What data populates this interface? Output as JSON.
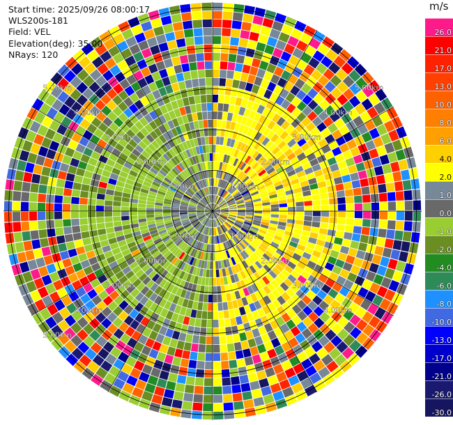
{
  "info": {
    "start_time": "Start time: 2025/09/26 08:00:17",
    "site": "WLS200s-181",
    "field": "Field: VEL",
    "elevation": "Elevation(deg): 35.00",
    "nrays": "NRays: 120"
  },
  "ring_labels": [
    "1.00km",
    "2.00km",
    "3.00km",
    "4.00km",
    "5.00km"
  ],
  "colorbar": {
    "unit": "m/s",
    "levels": [
      "26.0",
      "21.0",
      "17.0",
      "13.0",
      "10.0",
      "8.0",
      "6.0",
      "4.0",
      "2.0",
      "1.0",
      "0.0",
      "-1.0",
      "-2.0",
      "-4.0",
      "-6.0",
      "-8.0",
      "-10.0",
      "-13.0",
      "-17.0",
      "-21.0",
      "-26.0",
      "-30.0"
    ],
    "colors": [
      "#ff1a8c",
      "#ff0000",
      "#ff2200",
      "#ff4000",
      "#ff6000",
      "#ff8000",
      "#ffa000",
      "#ffd000",
      "#ffff00",
      "#778899",
      "#696969",
      "#9acd32",
      "#6b8e23",
      "#228b22",
      "#2e8b57",
      "#1e90ff",
      "#4169e1",
      "#0000ff",
      "#0000cd",
      "#00008b",
      "#191970",
      "#151560"
    ]
  }
}
